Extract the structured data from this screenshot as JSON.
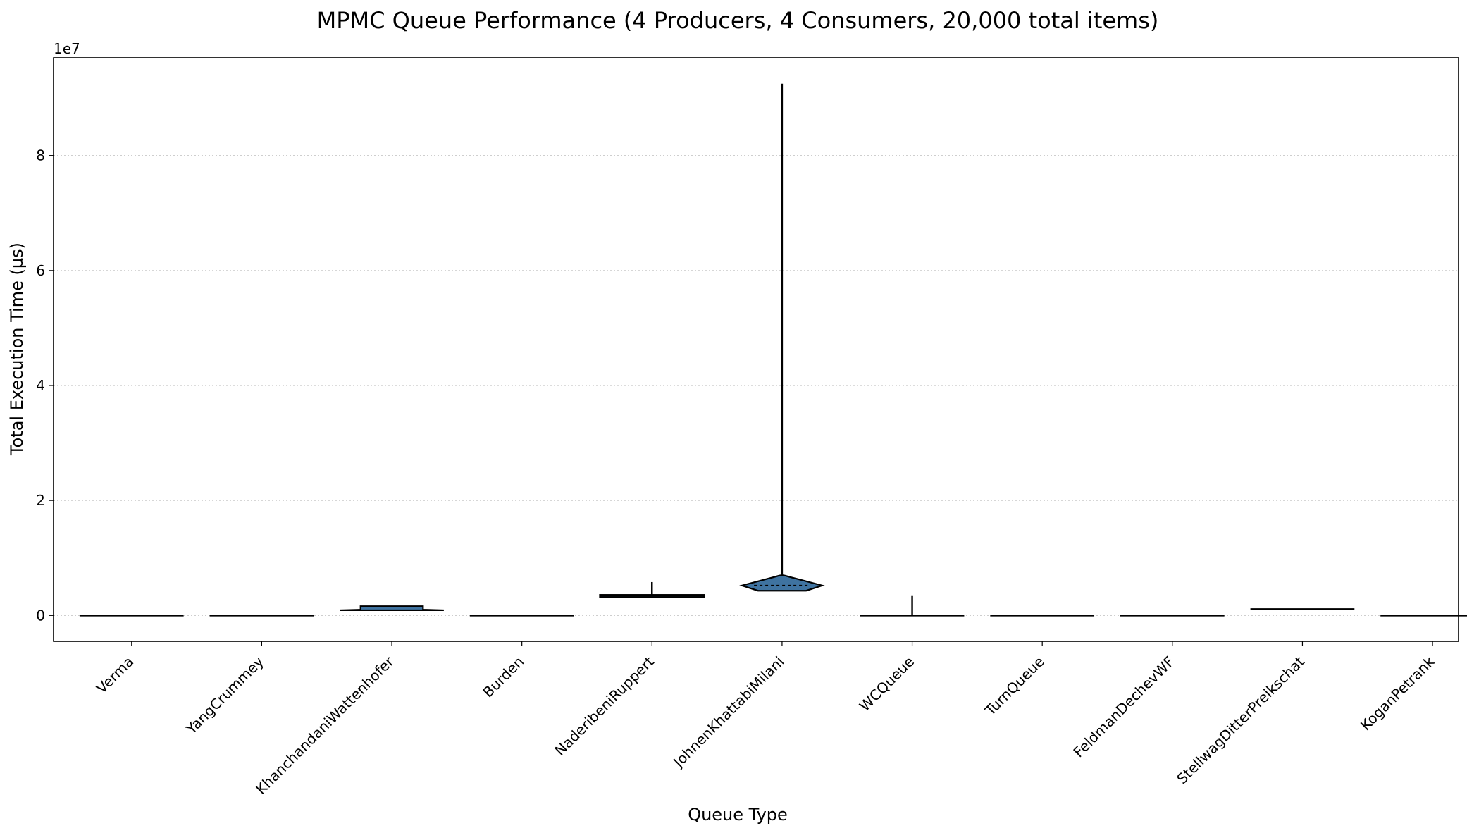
{
  "chart_data": {
    "type": "violin",
    "title": "MPMC Queue Performance (4 Producers, 4 Consumers, 20,000 total items)",
    "xlabel": "Queue Type",
    "ylabel": "Total Execution Time (µs)",
    "y_offset_label": "1e7",
    "ylim": [
      -4500000,
      97000000
    ],
    "y_ticks": [
      0,
      20000000,
      40000000,
      60000000,
      80000000
    ],
    "y_tick_labels": [
      "0",
      "2",
      "4",
      "6",
      "8"
    ],
    "grid": "y-dotted",
    "fill_color": "#3f73a0",
    "categories": [
      "Verma",
      "YangCrummey",
      "KhanchandaniWattenhofer",
      "Burden",
      "NaderibeniRuppert",
      "JohnenKhattabiMilani",
      "WCQueue",
      "TurnQueue",
      "FeldmanDechevWF",
      "StellwagDitterPreikschat",
      "KoganPetrank"
    ],
    "series": [
      {
        "category": "Verma",
        "min": 0,
        "q1": 0,
        "median": 0,
        "q3": 0,
        "max": 50000
      },
      {
        "category": "YangCrummey",
        "min": 0,
        "q1": 0,
        "median": 0,
        "q3": 0,
        "max": 50000
      },
      {
        "category": "KhanchandaniWattenhofer",
        "min": 900000,
        "q1": 1000000,
        "median": 1200000,
        "q3": 1500000,
        "max": 1600000
      },
      {
        "category": "Burden",
        "min": 0,
        "q1": 0,
        "median": 0,
        "q3": 0,
        "max": 50000
      },
      {
        "category": "NaderibeniRuppert",
        "min": 3200000,
        "q1": 3350000,
        "median": 3400000,
        "q3": 3450000,
        "max": 5800000
      },
      {
        "category": "JohnenKhattabiMilani",
        "min": 4300000,
        "q1": 4900000,
        "median": 5200000,
        "q3": 5600000,
        "max": 92500000
      },
      {
        "category": "WCQueue",
        "min": 0,
        "q1": 0,
        "median": 0,
        "q3": 0,
        "max": 3500000
      },
      {
        "category": "TurnQueue",
        "min": 0,
        "q1": 0,
        "median": 0,
        "q3": 0,
        "max": 50000
      },
      {
        "category": "FeldmanDechevWF",
        "min": 0,
        "q1": 0,
        "median": 0,
        "q3": 0,
        "max": 50000
      },
      {
        "category": "StellwagDitterPreikschat",
        "min": 1000000,
        "q1": 1050000,
        "median": 1080000,
        "q3": 1100000,
        "max": 1150000
      },
      {
        "category": "KoganPetrank",
        "min": 0,
        "q1": 0,
        "median": 0,
        "q3": 0,
        "max": 50000
      }
    ]
  }
}
